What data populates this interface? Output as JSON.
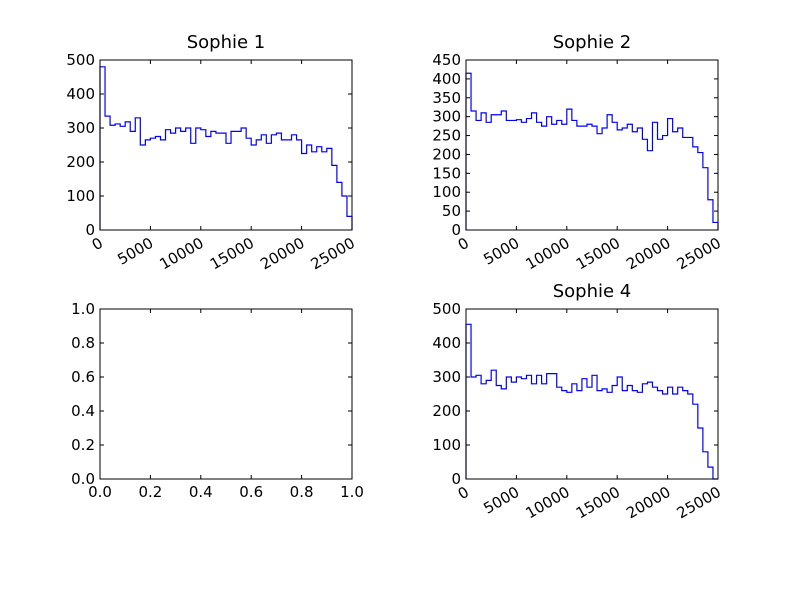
{
  "colors": {
    "series": "#0000ff",
    "axis": "#000000",
    "background": "#ffffff"
  },
  "chart_data": [
    {
      "type": "histogram",
      "title": "Sophie 1",
      "xlim": [
        0,
        25000
      ],
      "ylim": [
        0,
        500
      ],
      "xticks": [
        0,
        5000,
        10000,
        15000,
        20000,
        25000
      ],
      "xtick_labels": [
        "0",
        "5000",
        "10000",
        "15000",
        "20000",
        "25000"
      ],
      "yticks": [
        0,
        100,
        200,
        300,
        400,
        500
      ],
      "ytick_labels": [
        "0",
        "100",
        "200",
        "300",
        "400",
        "500"
      ],
      "xtick_rotation_deg": 30,
      "bin_width": 500,
      "bin_start": 0,
      "values": [
        480,
        335,
        308,
        312,
        305,
        318,
        290,
        330,
        250,
        265,
        270,
        275,
        265,
        295,
        285,
        300,
        290,
        300,
        255,
        300,
        295,
        275,
        290,
        285,
        285,
        255,
        290,
        290,
        300,
        270,
        250,
        265,
        280,
        255,
        280,
        285,
        265,
        265,
        280,
        265,
        225,
        250,
        230,
        245,
        230,
        240,
        190,
        140,
        100,
        40
      ]
    },
    {
      "type": "histogram",
      "title": "Sophie 2",
      "xlim": [
        0,
        25000
      ],
      "ylim": [
        0,
        450
      ],
      "xticks": [
        0,
        5000,
        10000,
        15000,
        20000,
        25000
      ],
      "xtick_labels": [
        "0",
        "5000",
        "10000",
        "15000",
        "20000",
        "25000"
      ],
      "yticks": [
        0,
        50,
        100,
        150,
        200,
        250,
        300,
        350,
        400,
        450
      ],
      "ytick_labels": [
        "0",
        "50",
        "100",
        "150",
        "200",
        "250",
        "300",
        "350",
        "400",
        "450"
      ],
      "xtick_rotation_deg": 30,
      "bin_width": 500,
      "bin_start": 0,
      "values": [
        415,
        315,
        290,
        310,
        285,
        305,
        305,
        315,
        290,
        290,
        292,
        285,
        295,
        310,
        285,
        275,
        300,
        280,
        290,
        280,
        320,
        290,
        275,
        275,
        280,
        275,
        255,
        270,
        305,
        285,
        265,
        270,
        280,
        260,
        270,
        240,
        210,
        285,
        240,
        250,
        295,
        260,
        270,
        245,
        245,
        220,
        205,
        165,
        80,
        20
      ]
    },
    {
      "type": "empty",
      "xlim": [
        0.0,
        1.0
      ],
      "ylim": [
        0.0,
        1.0
      ],
      "xticks": [
        0.0,
        0.2,
        0.4,
        0.6,
        0.8,
        1.0
      ],
      "xtick_labels": [
        "0.0",
        "0.2",
        "0.4",
        "0.6",
        "0.8",
        "1.0"
      ],
      "yticks": [
        0.0,
        0.2,
        0.4,
        0.6,
        0.8,
        1.0
      ],
      "ytick_labels": [
        "0.0",
        "0.2",
        "0.4",
        "0.6",
        "0.8",
        "1.0"
      ]
    },
    {
      "type": "histogram",
      "title": "Sophie 4",
      "xlim": [
        0,
        25000
      ],
      "ylim": [
        0,
        500
      ],
      "xticks": [
        0,
        5000,
        10000,
        15000,
        20000,
        25000
      ],
      "xtick_labels": [
        "0",
        "5000",
        "10000",
        "15000",
        "20000",
        "25000"
      ],
      "yticks": [
        0,
        100,
        200,
        300,
        400,
        500
      ],
      "ytick_labels": [
        "0",
        "100",
        "200",
        "300",
        "400",
        "500"
      ],
      "xtick_rotation_deg": 30,
      "bin_width": 500,
      "bin_start": 0,
      "values": [
        455,
        300,
        305,
        280,
        290,
        320,
        275,
        265,
        300,
        285,
        300,
        295,
        305,
        280,
        305,
        280,
        310,
        310,
        270,
        260,
        255,
        280,
        260,
        295,
        270,
        305,
        260,
        265,
        255,
        275,
        300,
        260,
        275,
        260,
        255,
        280,
        285,
        270,
        260,
        250,
        270,
        250,
        270,
        260,
        250,
        220,
        150,
        80,
        35,
        0
      ]
    }
  ]
}
